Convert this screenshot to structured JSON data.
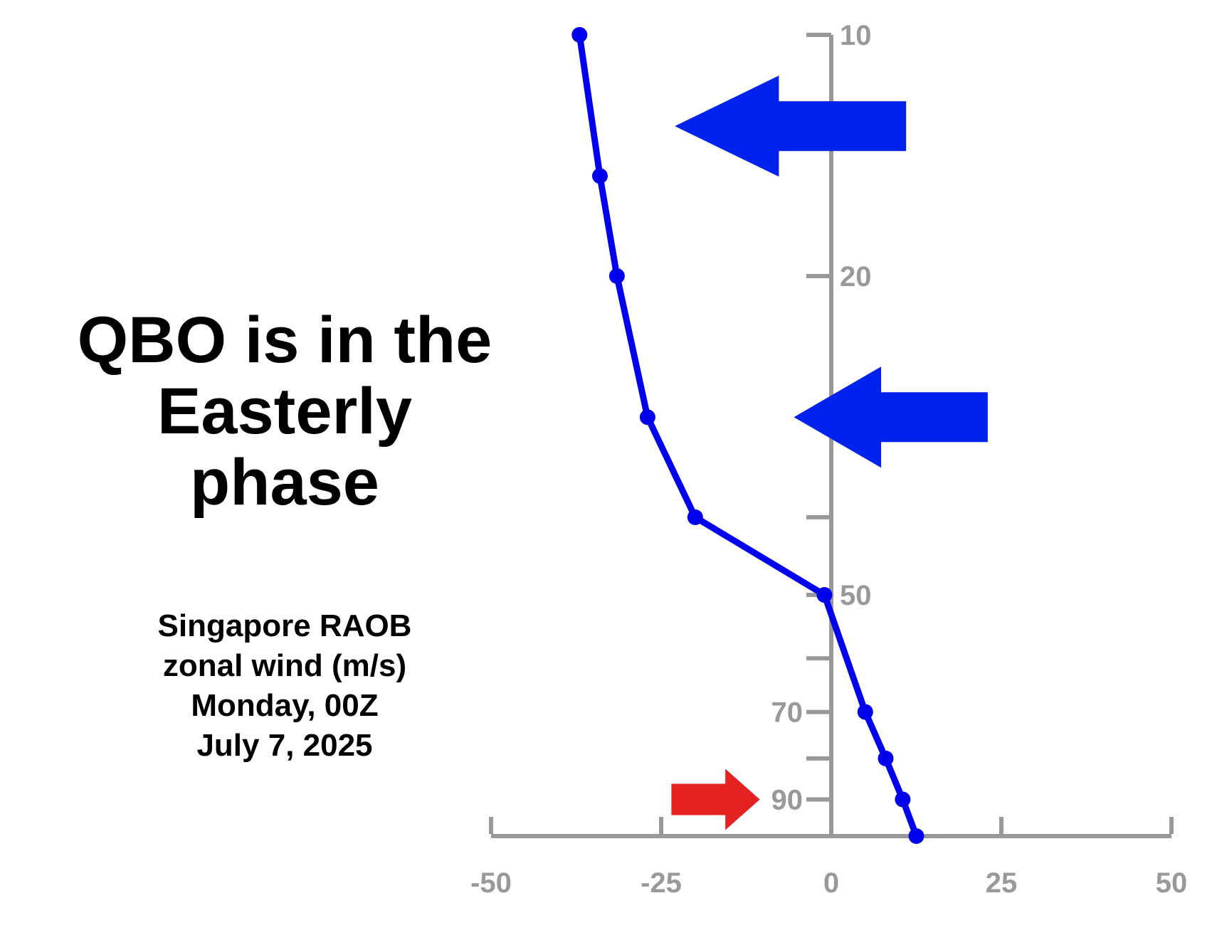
{
  "headline": {
    "line1": "QBO is in the",
    "line2": "Easterly",
    "line3": "phase"
  },
  "caption": {
    "line1": "Singapore RAOB",
    "line2": "zonal wind (m/s)",
    "line3": "Monday, 00Z",
    "line4": "July 7, 2025"
  },
  "chart_data": {
    "type": "line",
    "x_axis": {
      "min": -50,
      "max": 50,
      "ticks": [
        -50,
        -25,
        0,
        25,
        50
      ],
      "tick_labels": [
        "-50",
        "-25",
        "0",
        "25",
        "50"
      ]
    },
    "y_axis": {
      "scale": "log",
      "inverted": true,
      "min": 10,
      "max": 100,
      "labeled_ticks": [
        10,
        20,
        50,
        70,
        90
      ],
      "tick_labels": [
        "10",
        "20",
        "50",
        "70",
        "90"
      ],
      "unlabeled_ticks": [
        30,
        40,
        60,
        80
      ]
    },
    "series": [
      {
        "color": "#0000ee",
        "points": [
          {
            "x": -37,
            "y": 10
          },
          {
            "x": -34,
            "y": 15
          },
          {
            "x": -31.5,
            "y": 20
          },
          {
            "x": -27,
            "y": 30
          },
          {
            "x": -20,
            "y": 40
          },
          {
            "x": -1,
            "y": 50
          },
          {
            "x": 5,
            "y": 70
          },
          {
            "x": 8,
            "y": 80
          },
          {
            "x": 10.5,
            "y": 90
          },
          {
            "x": 12.5,
            "y": 100
          }
        ]
      }
    ],
    "annotations": [
      {
        "kind": "arrow",
        "direction": "left",
        "color": "#0022ee",
        "x_tail": 11,
        "x_tip": -23,
        "y": 13
      },
      {
        "kind": "arrow",
        "direction": "left",
        "color": "#0022ee",
        "x_tail": 23,
        "x_tip": -5.5,
        "y": 30
      },
      {
        "kind": "arrow",
        "direction": "right",
        "color": "#e52222",
        "x_tail": -23.5,
        "x_tip": -10.5,
        "y": 90
      }
    ],
    "axis_color": "#999999",
    "grid": false
  }
}
